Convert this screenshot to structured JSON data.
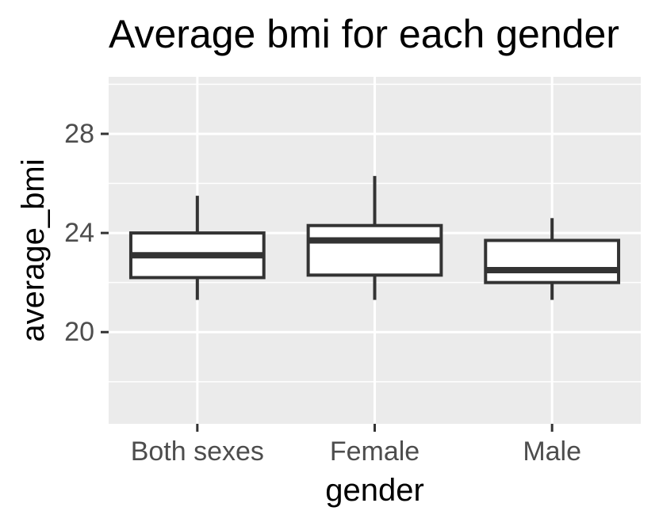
{
  "chart_data": {
    "type": "box",
    "title": "Average bmi for each gender",
    "xlabel": "gender",
    "ylabel": "average_bmi",
    "categories": [
      "Both sexes",
      "Female",
      "Male"
    ],
    "boxes": [
      {
        "category": "Both sexes",
        "whisker_low": 21.3,
        "q1": 22.2,
        "median": 23.1,
        "q3": 24.0,
        "whisker_high": 25.5
      },
      {
        "category": "Female",
        "whisker_low": 21.3,
        "q1": 22.3,
        "median": 23.7,
        "q3": 24.3,
        "whisker_high": 26.3
      },
      {
        "category": "Male",
        "whisker_low": 21.3,
        "q1": 22.0,
        "median": 22.5,
        "q3": 23.7,
        "whisker_high": 24.6
      }
    ],
    "y_ticks": [
      20,
      24,
      28
    ],
    "y_tick_labels": [
      "20",
      "24",
      "28"
    ],
    "ylim": [
      16.3,
      30.3
    ],
    "grid": true,
    "colors": {
      "panel_background": "#ebebeb",
      "grid_major": "#ffffff",
      "box_stroke": "#333333",
      "box_fill": "#ffffff",
      "tick_text": "#4d4d4d"
    }
  }
}
